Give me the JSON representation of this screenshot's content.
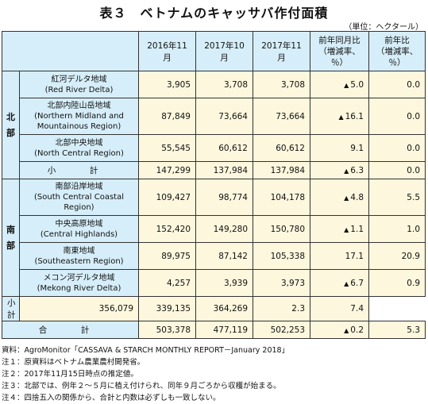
{
  "title": "表３　ベトナムのキャッサバ作付面積",
  "unit_note": "（単位：ヘクタール）",
  "columns": [
    "2016年11月",
    "2017年10月",
    "2017年11月",
    "前年同月比\n（増減率、％）",
    "前年比\n（増減率、％）"
  ],
  "areas": {
    "north": [
      "北",
      "部"
    ],
    "south": [
      "南",
      "部"
    ]
  },
  "rows": [
    {
      "name": "紅河デルタ地域",
      "en": "(Red River Delta)",
      "v1": "3,905",
      "v2": "3,708",
      "v3": "3,708",
      "yoy": "5.0",
      "yoy_neg": true,
      "yr": "0.0"
    },
    {
      "name": "北部内陸山岳地域",
      "en": "(Northern Midland and Mountainous Region)",
      "v1": "87,849",
      "v2": "73,664",
      "v3": "73,664",
      "yoy": "16.1",
      "yoy_neg": true,
      "yr": "0.0"
    },
    {
      "name": "北部中央地域",
      "en": "(North Central Region)",
      "v1": "55,545",
      "v2": "60,612",
      "v3": "60,612",
      "yoy": "9.1",
      "yoy_neg": false,
      "yr": "0.0"
    },
    {
      "subtotal": "小　計",
      "v1": "147,299",
      "v2": "137,984",
      "v3": "137,984",
      "yoy": "6.3",
      "yoy_neg": true,
      "yr": "0.0"
    },
    {
      "name": "南部沿岸地域",
      "en": "(South Central Coastal Region)",
      "v1": "109,427",
      "v2": "98,774",
      "v3": "104,178",
      "yoy": "4.8",
      "yoy_neg": true,
      "yr": "5.5"
    },
    {
      "name": "中央高原地域",
      "en": "(Central Highlands)",
      "v1": "152,420",
      "v2": "149,280",
      "v3": "150,780",
      "yoy": "1.1",
      "yoy_neg": true,
      "yr": "1.0"
    },
    {
      "name": "南東地域",
      "en": "(Southeastern Region)",
      "v1": "89,975",
      "v2": "87,142",
      "v3": "105,338",
      "yoy": "17.1",
      "yoy_neg": false,
      "yr": "20.9"
    },
    {
      "name": "メコン河デルタ地域",
      "en": "(Mekong River Delta)",
      "v1": "4,257",
      "v2": "3,939",
      "v3": "3,973",
      "yoy": "6.7",
      "yoy_neg": true,
      "yr": "0.9"
    },
    {
      "subtotal": "小　計",
      "v1": "356,079",
      "v2": "339,135",
      "v3": "364,269",
      "yoy": "2.3",
      "yoy_neg": false,
      "yr": "7.4"
    },
    {
      "total": "合　計",
      "v1": "503,378",
      "v2": "477,119",
      "v3": "502,253",
      "yoy": "0.2",
      "yoy_neg": true,
      "yr": "5.3"
    }
  ],
  "triangle": "▲",
  "notes": [
    "資料：AgroMonitor「CASSAVA & STARCH MONTHLY REPORT－January 2018」",
    "注１：原資料はベトナム農業農村開発省。",
    "注２：2017年11月15日時点の推定値。",
    "注３：北部では、例年２～５月に植え付けられ、同年９月ごろから収穫が始まる。",
    "注４：四捨五入の関係から、合計と内数は必ずしも一致しない。"
  ]
}
